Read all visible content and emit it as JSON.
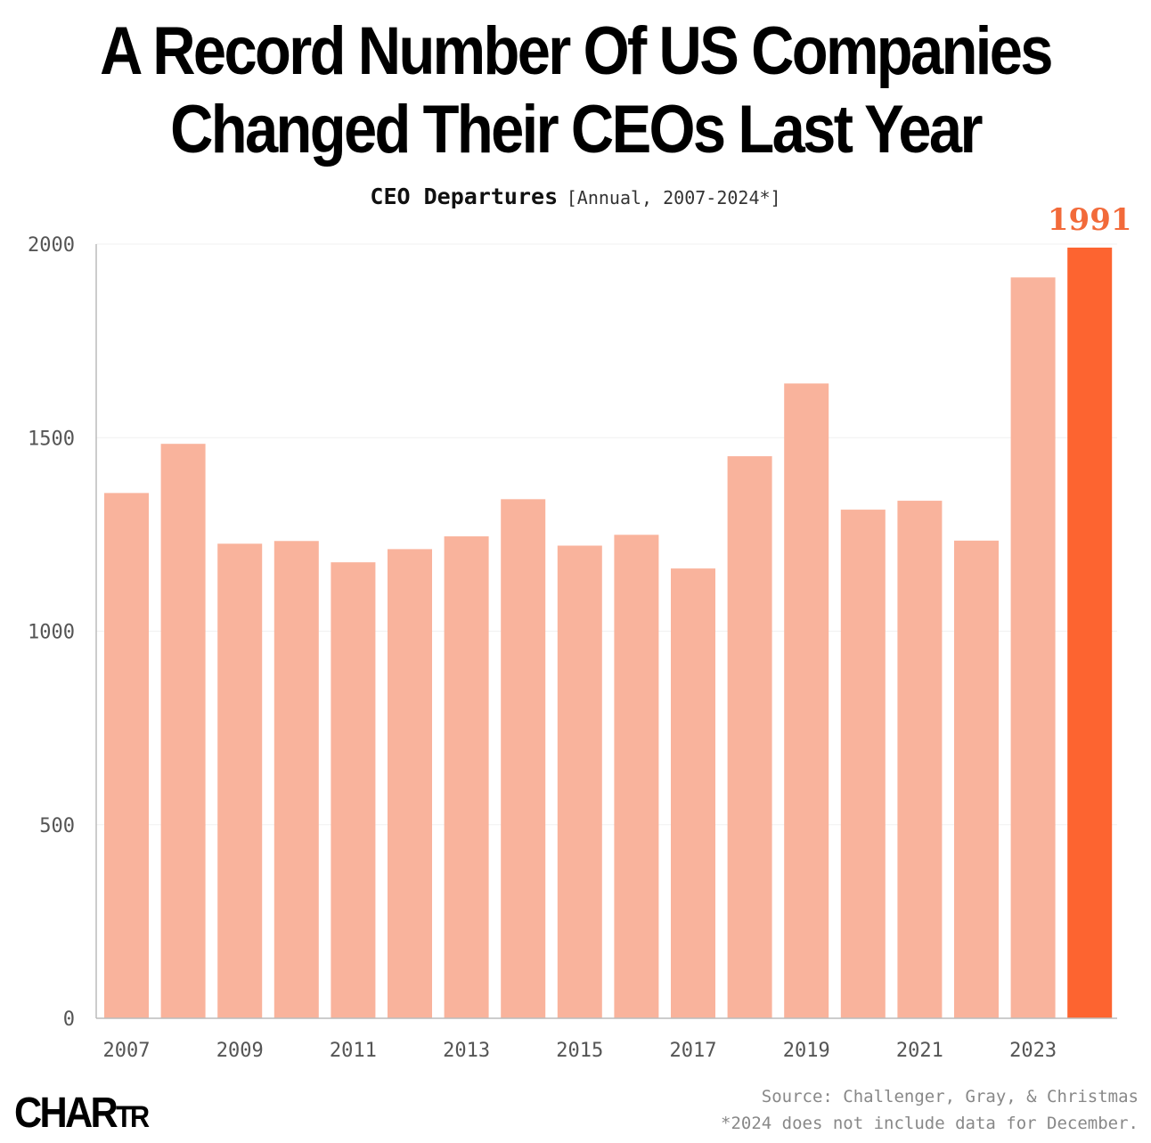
{
  "title_line1": "A Record Number Of US Companies",
  "title_line2": "Changed Their CEOs Last Year",
  "subtitle_main": "CEO Departures",
  "subtitle_bracket": "[Annual, 2007-2024*]",
  "logo_big": "CHAR",
  "logo_small": "TR",
  "source": "Source: Challenger, Gray, & Christmas",
  "footnote": "*2024 does not include data for December.",
  "colors": {
    "bar": "#f9b39c",
    "highlight": "#fd6430",
    "highlight_label": "#f26a3a",
    "axis": "#bbbbbb",
    "grid": "#f1f1f1"
  },
  "chart_data": {
    "type": "bar",
    "title": "CEO Departures",
    "xlabel": "",
    "ylabel": "",
    "ylim": [
      0,
      2000
    ],
    "yticks": [
      0,
      500,
      1000,
      1500,
      2000
    ],
    "categories": [
      "2007",
      "2008",
      "2009",
      "2010",
      "2011",
      "2012",
      "2013",
      "2014",
      "2015",
      "2016",
      "2017",
      "2018",
      "2019",
      "2020",
      "2021",
      "2022",
      "2023",
      "2024"
    ],
    "xtick_labels": [
      "2007",
      "",
      "2009",
      "",
      "2011",
      "",
      "2013",
      "",
      "2015",
      "",
      "2017",
      "",
      "2019",
      "",
      "2021",
      "",
      "2023",
      ""
    ],
    "values": [
      1357,
      1484,
      1226,
      1233,
      1178,
      1212,
      1245,
      1341,
      1221,
      1249,
      1162,
      1452,
      1640,
      1314,
      1337,
      1234,
      1914,
      1991
    ],
    "highlight_index": 17,
    "highlight_label": "1991",
    "grid": true
  }
}
